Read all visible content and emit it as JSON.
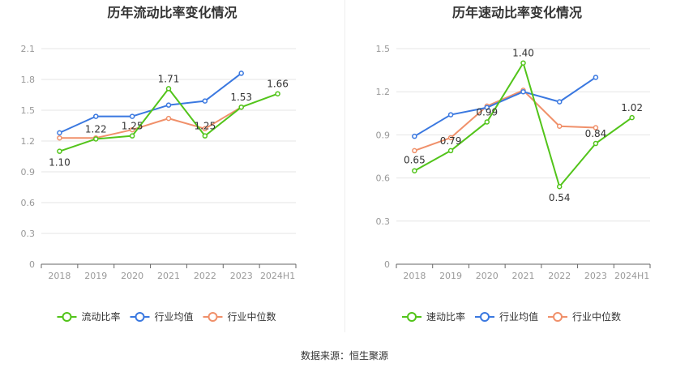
{
  "chart_data": [
    {
      "type": "line",
      "title": "历年流动比率变化情况",
      "categories": [
        "2018",
        "2019",
        "2020",
        "2021",
        "2022",
        "2023",
        "2024H1"
      ],
      "ylim": [
        0,
        2.1
      ],
      "yticks": [
        "0",
        "0.3",
        "0.6",
        "0.9",
        "1.2",
        "1.5",
        "1.8",
        "2.1"
      ],
      "grid": true,
      "legend_position": "bottom",
      "series": [
        {
          "name": "流动比率",
          "color": "#52c41a",
          "values": [
            1.1,
            1.22,
            1.25,
            1.71,
            1.25,
            1.53,
            1.66
          ],
          "labels": [
            "1.10",
            "1.22",
            "1.25",
            "1.71",
            "1.25",
            "1.53",
            "1.66"
          ]
        },
        {
          "name": "行业均值",
          "color": "#3a78e0",
          "values": [
            1.28,
            1.44,
            1.44,
            1.55,
            1.59,
            1.86,
            null
          ]
        },
        {
          "name": "行业中位数",
          "color": "#f0906a",
          "values": [
            1.23,
            1.23,
            1.31,
            1.42,
            1.32,
            1.53,
            null
          ]
        }
      ]
    },
    {
      "type": "line",
      "title": "历年速动比率变化情况",
      "categories": [
        "2018",
        "2019",
        "2020",
        "2021",
        "2022",
        "2023",
        "2024H1"
      ],
      "ylim": [
        0,
        1.5
      ],
      "yticks": [
        "0",
        "0.3",
        "0.6",
        "0.9",
        "1.2",
        "1.5"
      ],
      "grid": true,
      "legend_position": "bottom",
      "series": [
        {
          "name": "速动比率",
          "color": "#52c41a",
          "values": [
            0.65,
            0.79,
            0.99,
            1.4,
            0.54,
            0.84,
            1.02
          ],
          "labels": [
            "0.65",
            "0.79",
            "0.99",
            "1.40",
            "0.54",
            "0.84",
            "1.02"
          ]
        },
        {
          "name": "行业均值",
          "color": "#3a78e0",
          "values": [
            0.89,
            1.04,
            1.09,
            1.2,
            1.13,
            1.3,
            null
          ]
        },
        {
          "name": "行业中位数",
          "color": "#f0906a",
          "values": [
            0.79,
            0.88,
            1.1,
            1.21,
            0.96,
            0.95,
            null
          ]
        }
      ]
    }
  ],
  "source": "数据来源：恒生聚源"
}
